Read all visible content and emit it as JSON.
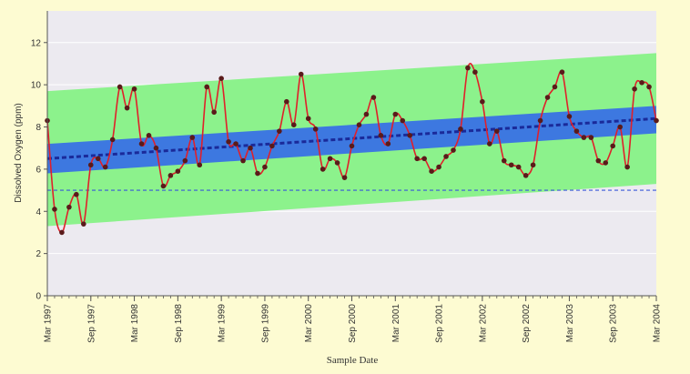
{
  "chart_data": {
    "type": "line",
    "title": "",
    "xlabel": "Sample Date",
    "ylabel": "Dissolved Oxygen (ppm)",
    "ylim": [
      0,
      13.5
    ],
    "yticks": [
      0,
      2,
      4,
      6,
      8,
      10,
      12
    ],
    "xticks": [
      {
        "label": "Mar 1997",
        "t": 0
      },
      {
        "label": "Sep 1997",
        "t": 6
      },
      {
        "label": "Mar 1998",
        "t": 12
      },
      {
        "label": "Sep 1998",
        "t": 18
      },
      {
        "label": "Mar 1999",
        "t": 24
      },
      {
        "label": "Sep 1999",
        "t": 30
      },
      {
        "label": "Mar 2000",
        "t": 36
      },
      {
        "label": "Sep 2000",
        "t": 42
      },
      {
        "label": "Mar 2001",
        "t": 48
      },
      {
        "label": "Sep 2001",
        "t": 54
      },
      {
        "label": "Mar 2002",
        "t": 60
      },
      {
        "label": "Sep 2002",
        "t": 66
      },
      {
        "label": "Mar 2003",
        "t": 72
      },
      {
        "label": "Sep 2003",
        "t": 78
      },
      {
        "label": "Mar 2004",
        "t": 84
      }
    ],
    "grid": true,
    "series": [
      {
        "color": "#e0202a",
        "marker_color": "#5a1a1a",
        "points": [
          [
            0,
            8.3
          ],
          [
            1,
            4.1
          ],
          [
            2,
            3.0
          ],
          [
            3,
            4.2
          ],
          [
            4,
            4.8
          ],
          [
            5,
            3.4
          ],
          [
            6,
            6.2
          ],
          [
            7,
            6.5
          ],
          [
            8,
            6.1
          ],
          [
            9,
            7.4
          ],
          [
            10,
            9.9
          ],
          [
            11,
            8.9
          ],
          [
            12,
            9.8
          ],
          [
            13,
            7.2
          ],
          [
            14,
            7.6
          ],
          [
            15,
            7.0
          ],
          [
            16,
            5.2
          ],
          [
            17,
            5.7
          ],
          [
            18,
            5.9
          ],
          [
            19,
            6.4
          ],
          [
            20,
            7.5
          ],
          [
            21,
            6.2
          ],
          [
            22,
            9.9
          ],
          [
            23,
            8.7
          ],
          [
            24,
            10.3
          ],
          [
            25,
            7.3
          ],
          [
            26,
            7.2
          ],
          [
            27,
            6.4
          ],
          [
            28,
            7.0
          ],
          [
            29,
            5.8
          ],
          [
            30,
            6.1
          ],
          [
            31,
            7.1
          ],
          [
            32,
            7.8
          ],
          [
            33,
            9.2
          ],
          [
            34,
            8.1
          ],
          [
            35,
            10.5
          ],
          [
            36,
            8.4
          ],
          [
            37,
            7.9
          ],
          [
            38,
            6.0
          ],
          [
            39,
            6.5
          ],
          [
            40,
            6.3
          ],
          [
            41,
            5.6
          ],
          [
            42,
            7.1
          ],
          [
            43,
            8.1
          ],
          [
            44,
            8.6
          ],
          [
            45,
            9.4
          ],
          [
            46,
            7.6
          ],
          [
            47,
            7.2
          ],
          [
            48,
            8.6
          ],
          [
            49,
            8.3
          ],
          [
            50,
            7.6
          ],
          [
            51,
            6.5
          ],
          [
            52,
            6.5
          ],
          [
            53,
            5.9
          ],
          [
            54,
            6.1
          ],
          [
            55,
            6.6
          ],
          [
            56,
            6.9
          ],
          [
            57,
            7.9
          ],
          [
            58,
            10.8
          ],
          [
            59,
            10.6
          ],
          [
            60,
            9.2
          ],
          [
            61,
            7.2
          ],
          [
            62,
            7.8
          ],
          [
            63,
            6.4
          ],
          [
            64,
            6.2
          ],
          [
            65,
            6.1
          ],
          [
            66,
            5.7
          ],
          [
            67,
            6.2
          ],
          [
            68,
            8.3
          ],
          [
            69,
            9.4
          ],
          [
            70,
            9.9
          ],
          [
            71,
            10.6
          ],
          [
            72,
            8.5
          ],
          [
            73,
            7.8
          ],
          [
            74,
            7.5
          ],
          [
            75,
            7.5
          ],
          [
            76,
            6.4
          ],
          [
            77,
            6.3
          ],
          [
            78,
            7.1
          ],
          [
            79,
            8.0
          ],
          [
            80,
            6.1
          ],
          [
            81,
            9.8
          ],
          [
            82,
            10.1
          ],
          [
            83,
            9.9
          ],
          [
            84,
            8.3
          ]
        ]
      }
    ],
    "trend_line": {
      "start": [
        0,
        6.5
      ],
      "end": [
        84,
        8.4
      ],
      "color": "#1a2a9a"
    },
    "confidence_band": {
      "start": [
        5.8,
        7.2
      ],
      "end": [
        7.7,
        9.0
      ],
      "color": "#3d78e0"
    },
    "prediction_band": {
      "start": [
        3.3,
        9.7
      ],
      "end": [
        5.3,
        11.5
      ],
      "color": "#8cf28c"
    },
    "threshold": {
      "value": 5.0,
      "color": "#3a58d8"
    }
  }
}
